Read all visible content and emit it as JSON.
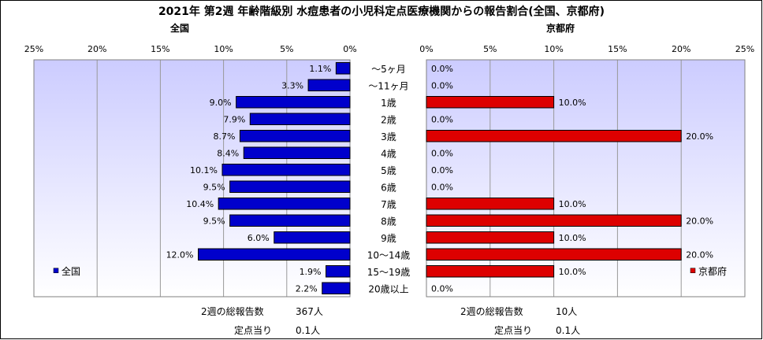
{
  "chart_data": {
    "type": "bar",
    "title": "2021年 第2週 年齢階級別 水痘患者の小児科定点医療機関からの報告割合(全国、京都府)",
    "categories": [
      "～5ヶ月",
      "～11ヶ月",
      "1歳",
      "2歳",
      "3歳",
      "4歳",
      "5歳",
      "6歳",
      "7歳",
      "8歳",
      "9歳",
      "10～14歳",
      "15～19歳",
      "20歳以上"
    ],
    "panels": [
      {
        "name": "全国",
        "legend": "全国",
        "color": "#0000cc",
        "xlim": [
          0,
          25
        ],
        "direction": "leftward",
        "ticks": [
          "0%",
          "5%",
          "10%",
          "15%",
          "20%",
          "25%"
        ],
        "values": [
          1.1,
          3.3,
          9.0,
          7.9,
          8.7,
          8.4,
          10.1,
          9.5,
          10.4,
          9.5,
          6.0,
          12.0,
          1.9,
          2.2
        ],
        "labels": [
          "1.1%",
          "3.3%",
          "9.0%",
          "7.9%",
          "8.7%",
          "8.4%",
          "10.1%",
          "9.5%",
          "10.4%",
          "9.5%",
          "6.0%",
          "12.0%",
          "1.9%",
          "2.2%"
        ],
        "legend_position": "bottom-left"
      },
      {
        "name": "京都府",
        "legend": "京都府",
        "color": "#dd0000",
        "xlim": [
          0,
          25
        ],
        "direction": "rightward",
        "ticks": [
          "0%",
          "5%",
          "10%",
          "15%",
          "20%",
          "25%"
        ],
        "values": [
          0,
          0,
          10,
          0,
          20,
          0,
          0,
          0,
          10,
          20,
          10,
          20,
          10,
          0
        ],
        "labels": [
          "0.0%",
          "0.0%",
          "10.0%",
          "0.0%",
          "20.0%",
          "0.0%",
          "0.0%",
          "0.0%",
          "10.0%",
          "20.0%",
          "10.0%",
          "20.0%",
          "10.0%",
          "0.0%"
        ],
        "legend_position": "bottom-right"
      }
    ],
    "grid": true
  },
  "stats": {
    "national": {
      "total_label": "2週の総報告数",
      "total_value": "367人",
      "per_label": "定点当り",
      "per_value": "0.1人"
    },
    "kyoto": {
      "total_label": "2週の総報告数",
      "total_value": "10人",
      "per_label": "定点当り",
      "per_value": "0.1人"
    }
  }
}
